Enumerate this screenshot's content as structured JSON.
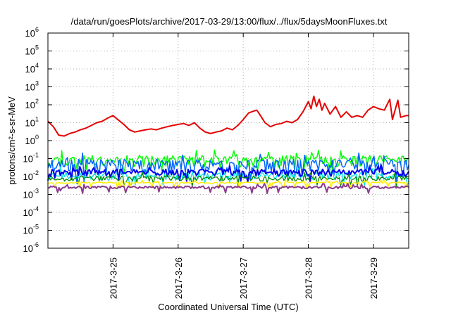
{
  "chart_data": {
    "type": "line",
    "title": "/data/run/goesPlots/archive/2017-03-29/13:00/flux/../flux/5daysMoonFluxes.txt",
    "xlabel": "Coordinated Universal Time (UTC)",
    "ylabel": "protons/cm²-s-sr-MeV",
    "y_scale": "log",
    "ylim": [
      1e-06,
      1000000.0
    ],
    "y_ticks": [
      {
        "base": "10",
        "exp": "-6",
        "value": 1e-06
      },
      {
        "base": "10",
        "exp": "-5",
        "value": 1e-05
      },
      {
        "base": "10",
        "exp": "-4",
        "value": 0.0001
      },
      {
        "base": "10",
        "exp": "-3",
        "value": 0.001
      },
      {
        "base": "10",
        "exp": "-2",
        "value": 0.01
      },
      {
        "base": "10",
        "exp": "-1",
        "value": 0.1
      },
      {
        "base": "10",
        "exp": "0",
        "value": 1
      },
      {
        "base": "10",
        "exp": "1",
        "value": 10
      },
      {
        "base": "10",
        "exp": "2",
        "value": 100
      },
      {
        "base": "10",
        "exp": "3",
        "value": 1000
      },
      {
        "base": "10",
        "exp": "4",
        "value": 10000
      },
      {
        "base": "10",
        "exp": "5",
        "value": 100000
      },
      {
        "base": "10",
        "exp": "6",
        "value": 1000000
      }
    ],
    "xlim": [
      "2017-03-24T00:00",
      "2017-03-29T13:00"
    ],
    "x_ticks": [
      {
        "label": "2017-3-25",
        "date": "2017-03-25T00:00"
      },
      {
        "label": "2017-3-26",
        "date": "2017-03-26T00:00"
      },
      {
        "label": "2017-3-27",
        "date": "2017-03-27T00:00"
      },
      {
        "label": "2017-3-28",
        "date": "2017-03-28T00:00"
      },
      {
        "label": "2017-3-29",
        "date": "2017-03-29T00:00"
      }
    ],
    "grid": true,
    "series": [
      {
        "color": "#e60000",
        "width": 2,
        "points": [
          [
            "2017-03-24T00:00",
            12
          ],
          [
            "2017-03-24T02:00",
            6
          ],
          [
            "2017-03-24T04:00",
            2
          ],
          [
            "2017-03-24T06:00",
            1.8
          ],
          [
            "2017-03-24T08:00",
            2.5
          ],
          [
            "2017-03-24T10:00",
            3
          ],
          [
            "2017-03-24T12:00",
            4
          ],
          [
            "2017-03-24T14:00",
            5
          ],
          [
            "2017-03-24T16:00",
            7
          ],
          [
            "2017-03-24T18:00",
            10
          ],
          [
            "2017-03-24T20:00",
            12
          ],
          [
            "2017-03-24T22:00",
            18
          ],
          [
            "2017-03-25T00:00",
            25
          ],
          [
            "2017-03-25T02:00",
            14
          ],
          [
            "2017-03-25T04:00",
            8
          ],
          [
            "2017-03-25T06:00",
            4
          ],
          [
            "2017-03-25T08:00",
            3
          ],
          [
            "2017-03-25T10:00",
            3.5
          ],
          [
            "2017-03-25T12:00",
            4
          ],
          [
            "2017-03-25T14:00",
            4.5
          ],
          [
            "2017-03-25T16:00",
            4
          ],
          [
            "2017-03-25T18:00",
            5
          ],
          [
            "2017-03-25T20:00",
            6
          ],
          [
            "2017-03-25T22:00",
            7
          ],
          [
            "2017-03-26T00:00",
            8
          ],
          [
            "2017-03-26T02:00",
            9
          ],
          [
            "2017-03-26T04:00",
            7
          ],
          [
            "2017-03-26T06:00",
            10
          ],
          [
            "2017-03-26T08:00",
            5
          ],
          [
            "2017-03-26T10:00",
            3
          ],
          [
            "2017-03-26T12:00",
            2.5
          ],
          [
            "2017-03-26T14:00",
            3
          ],
          [
            "2017-03-26T16:00",
            3.5
          ],
          [
            "2017-03-26T18:00",
            5
          ],
          [
            "2017-03-26T20:00",
            4
          ],
          [
            "2017-03-26T22:00",
            7
          ],
          [
            "2017-03-27T00:00",
            15
          ],
          [
            "2017-03-27T02:00",
            35
          ],
          [
            "2017-03-27T04:00",
            45
          ],
          [
            "2017-03-27T05:00",
            50
          ],
          [
            "2017-03-27T06:00",
            30
          ],
          [
            "2017-03-27T08:00",
            10
          ],
          [
            "2017-03-27T10:00",
            6
          ],
          [
            "2017-03-27T12:00",
            8
          ],
          [
            "2017-03-27T14:00",
            9
          ],
          [
            "2017-03-27T16:00",
            12
          ],
          [
            "2017-03-27T18:00",
            10
          ],
          [
            "2017-03-27T20:00",
            15
          ],
          [
            "2017-03-27T22:00",
            40
          ],
          [
            "2017-03-28T00:00",
            150
          ],
          [
            "2017-03-28T01:00",
            60
          ],
          [
            "2017-03-28T02:00",
            300
          ],
          [
            "2017-03-28T03:00",
            80
          ],
          [
            "2017-03-28T04:00",
            200
          ],
          [
            "2017-03-28T05:00",
            50
          ],
          [
            "2017-03-28T06:00",
            120
          ],
          [
            "2017-03-28T08:00",
            30
          ],
          [
            "2017-03-28T10:00",
            80
          ],
          [
            "2017-03-28T12:00",
            20
          ],
          [
            "2017-03-28T14:00",
            40
          ],
          [
            "2017-03-28T16:00",
            20
          ],
          [
            "2017-03-28T18:00",
            25
          ],
          [
            "2017-03-28T20:00",
            20
          ],
          [
            "2017-03-28T22:00",
            50
          ],
          [
            "2017-03-29T00:00",
            80
          ],
          [
            "2017-03-29T02:00",
            60
          ],
          [
            "2017-03-29T04:00",
            50
          ],
          [
            "2017-03-29T06:00",
            200
          ],
          [
            "2017-03-29T07:00",
            15
          ],
          [
            "2017-03-29T09:00",
            180
          ],
          [
            "2017-03-29T10:00",
            20
          ],
          [
            "2017-03-29T12:00",
            25
          ],
          [
            "2017-03-29T13:00",
            25
          ]
        ]
      },
      {
        "color": "#00ff00",
        "width": 1.5,
        "base": 0.09,
        "amp": 1.8,
        "seed": 11
      },
      {
        "color": "#0066ff",
        "width": 1.5,
        "base": 0.05,
        "amp": 2.0,
        "seed": 23
      },
      {
        "color": "#00e5e5",
        "width": 1.3,
        "base": 0.012,
        "amp": 1.6,
        "seed": 37
      },
      {
        "color": "#0000ee",
        "width": 2,
        "base": 0.018,
        "amp": 1.5,
        "seed": 41
      },
      {
        "color": "#008b00",
        "width": 1.3,
        "base": 0.008,
        "amp": 1.4,
        "seed": 53
      },
      {
        "color": "#ffee00",
        "width": 1.5,
        "base": 0.0045,
        "amp": 1.1,
        "seed": 67
      },
      {
        "color": "#8b3a8b",
        "width": 2,
        "base": 0.0025,
        "amp": 1.2,
        "seed": 71
      }
    ]
  }
}
